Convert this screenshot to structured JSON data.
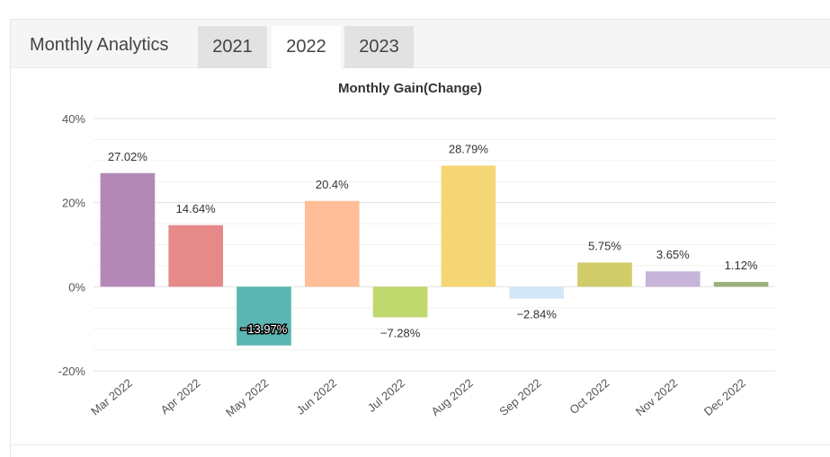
{
  "header": {
    "title": "Monthly Analytics",
    "tabs": [
      {
        "label": "2021",
        "active": false
      },
      {
        "label": "2022",
        "active": true
      },
      {
        "label": "2023",
        "active": false
      }
    ]
  },
  "chart_data": {
    "type": "bar",
    "title": "Monthly Gain(Change)",
    "categories": [
      "Mar 2022",
      "Apr 2022",
      "May 2022",
      "Jun 2022",
      "Jul 2022",
      "Aug 2022",
      "Sep 2022",
      "Oct 2022",
      "Nov 2022",
      "Dec 2022"
    ],
    "values": [
      27.02,
      14.64,
      -13.97,
      20.4,
      -7.28,
      28.79,
      -2.84,
      5.75,
      3.65,
      1.12
    ],
    "data_labels": [
      "27.02%",
      "14.64%",
      "−13.97%",
      "20.4%",
      "−7.28%",
      "28.79%",
      "−2.84%",
      "5.75%",
      "3.65%",
      "1.12%"
    ],
    "colors": [
      "#b388b7",
      "#e58a89",
      "#5bb5b3",
      "#ffbd98",
      "#bfd96e",
      "#f5d674",
      "#d3e7f8",
      "#d1cc6a",
      "#c6b4d9",
      "#9bb07a"
    ],
    "y_ticks": [
      "40%",
      "20%",
      "0%",
      "-20%"
    ],
    "y_tick_values": [
      40,
      20,
      0,
      -20
    ],
    "ylim": [
      -20,
      40
    ],
    "xlabel": "",
    "ylabel": "",
    "grid": true,
    "legend": false
  }
}
